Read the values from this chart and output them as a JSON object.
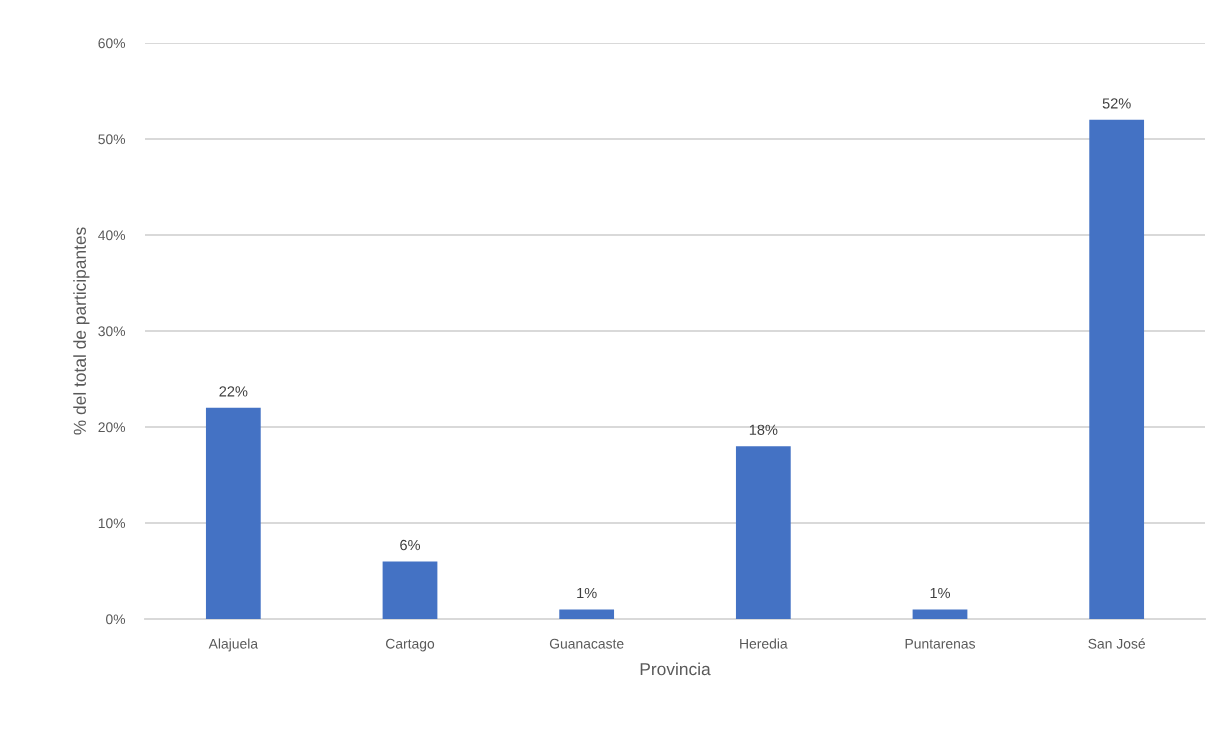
{
  "chart_data": {
    "type": "bar",
    "xlabel": "Provincia",
    "ylabel": "% del total de participantes",
    "categories": [
      "Alajuela",
      "Cartago",
      "Guanacaste",
      "Heredia",
      "Puntarenas",
      "San José"
    ],
    "values": [
      22,
      6,
      1,
      18,
      1,
      52
    ],
    "color": "#4472c4",
    "value_labels": [
      "22%",
      "6%",
      "1%",
      "18%",
      "1%",
      "52%"
    ],
    "ylim": [
      0,
      60
    ],
    "yticks": [
      {
        "value": 0,
        "label": "0%"
      },
      {
        "value": 10,
        "label": "10%"
      },
      {
        "value": 20,
        "label": "20%"
      },
      {
        "value": 30,
        "label": "30%"
      },
      {
        "value": 40,
        "label": "40%"
      },
      {
        "value": 50,
        "label": "50%"
      },
      {
        "value": 60,
        "label": "60%"
      }
    ],
    "grid": "y",
    "legend": false
  }
}
